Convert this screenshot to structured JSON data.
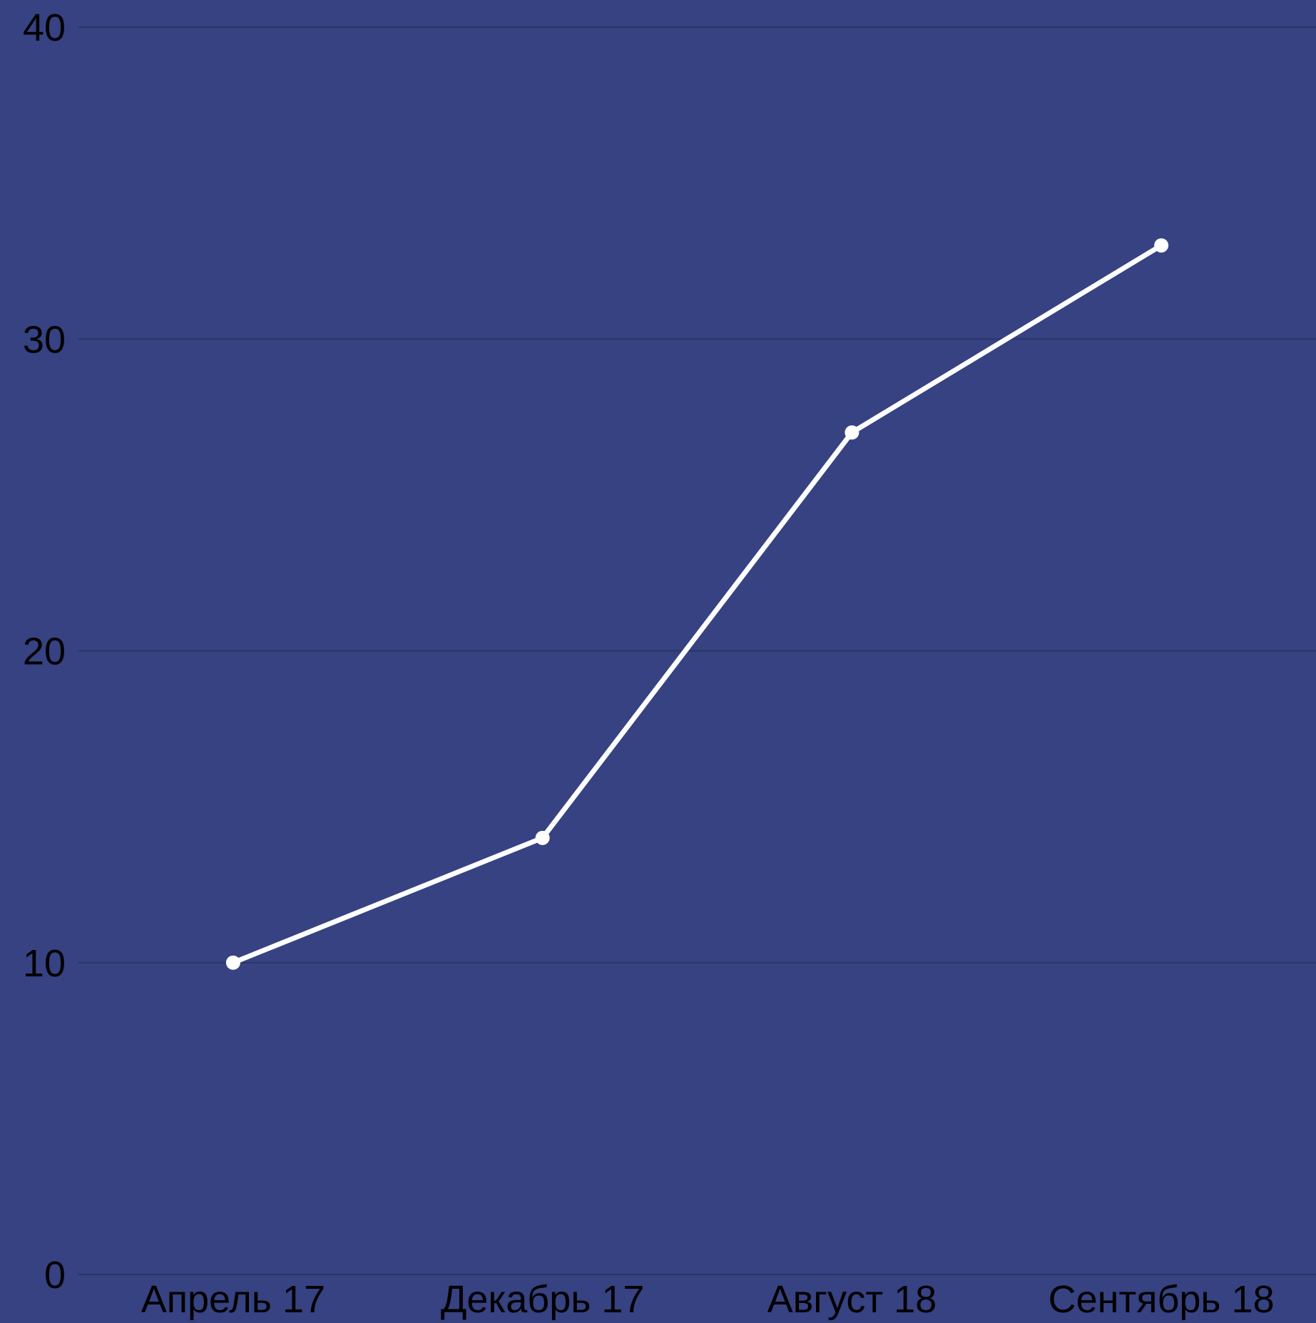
{
  "colors": {
    "background": "#364281",
    "line": "#ffffff",
    "grid": "#2c3566",
    "text": "#000000"
  },
  "chart_data": {
    "type": "line",
    "title": "",
    "xlabel": "",
    "ylabel": "",
    "categories": [
      "Апрель 17",
      "Декабрь 17",
      "Август 18",
      "Сентябрь 18"
    ],
    "series": [
      {
        "values": [
          10,
          14,
          27,
          33
        ]
      }
    ],
    "ylim": [
      0,
      40
    ],
    "yticks": [
      0,
      10,
      20,
      30,
      40
    ],
    "grid": true,
    "legend": "none",
    "markers": true
  }
}
